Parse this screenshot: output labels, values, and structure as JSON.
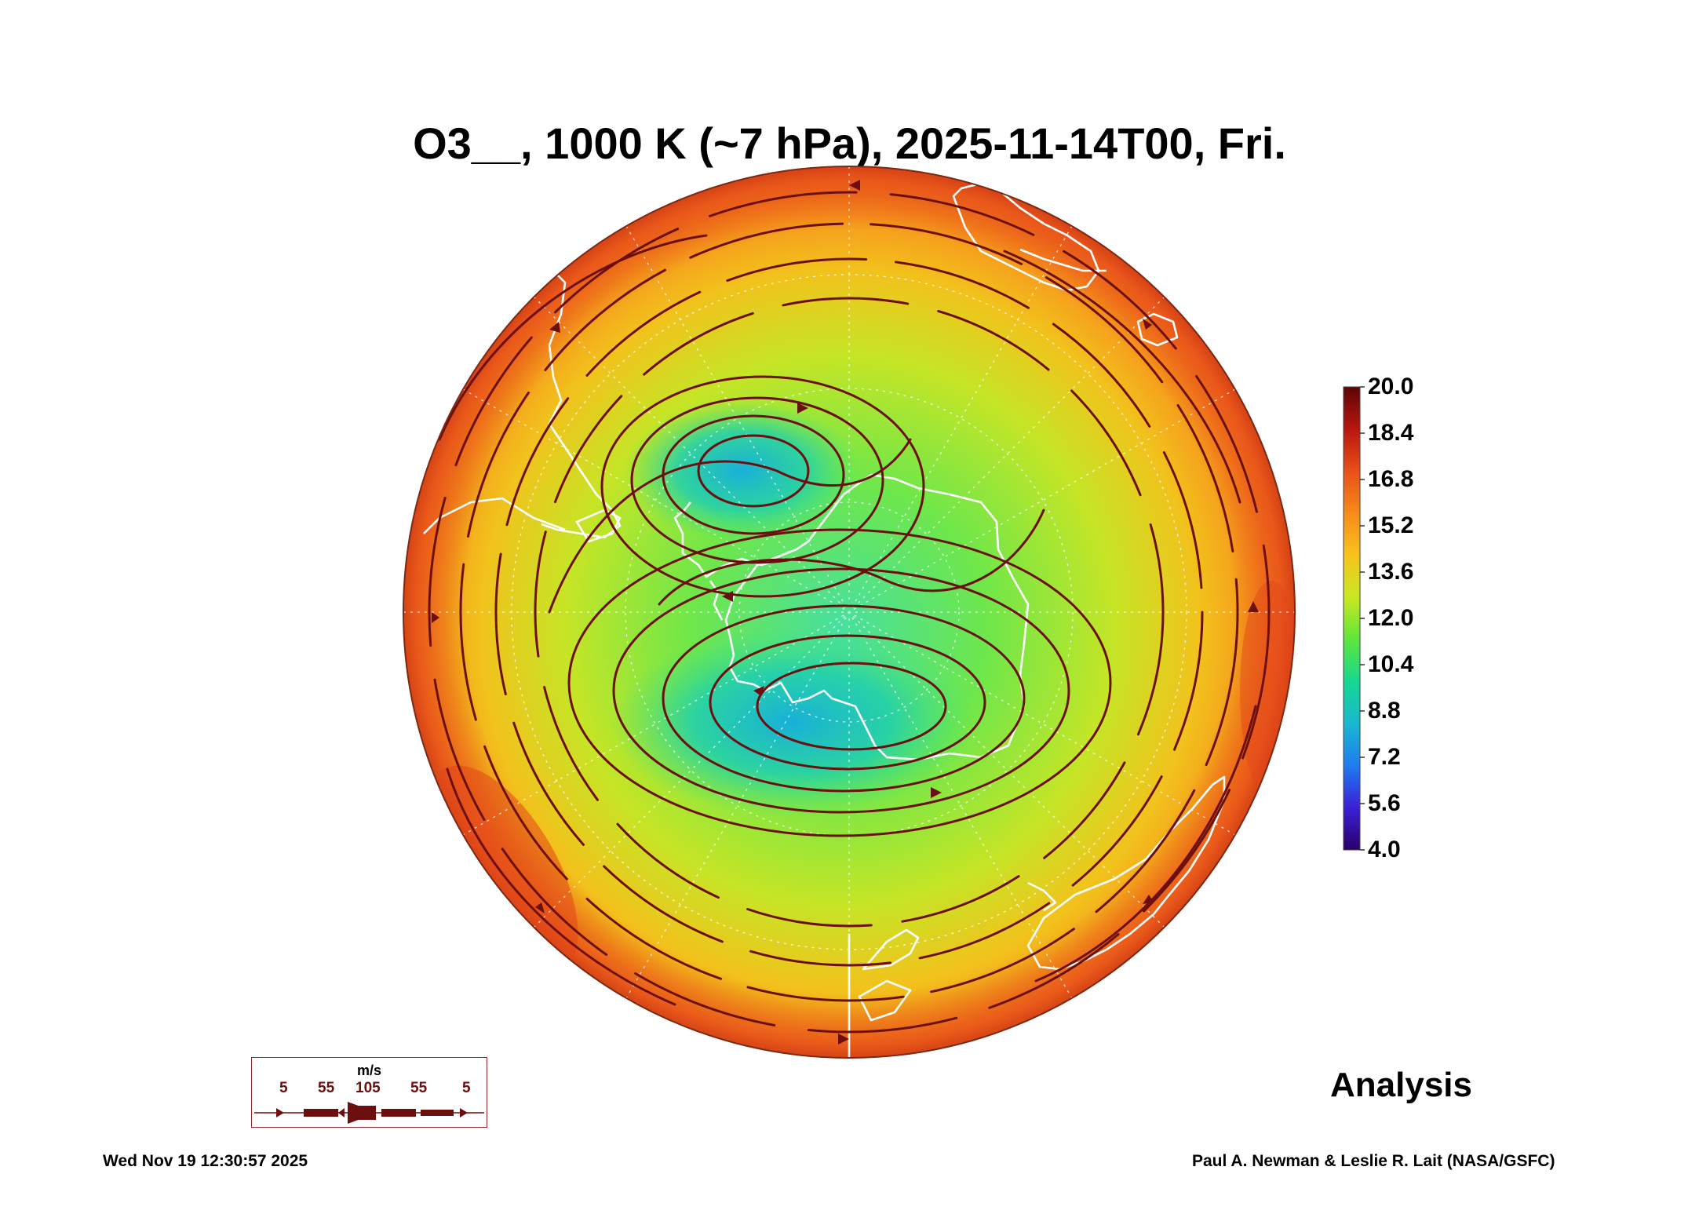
{
  "title": "O3__, 1000 K (~7 hPa), 2025-11-14T00, Fri.",
  "map": {
    "projection": "south-polar-stereographic",
    "field": "O3__",
    "level": "1000 K (~7 hPa)",
    "valid_time": "2025-11-14T00"
  },
  "colorbar": {
    "ticks": [
      "20.0",
      "18.4",
      "16.8",
      "15.2",
      "13.6",
      "12.0",
      "10.4",
      "8.8",
      "7.2",
      "5.6",
      "4.0"
    ],
    "min": 4.0,
    "max": 20.0,
    "colors": [
      "#2a006a",
      "#3b1fd6",
      "#1f7cf0",
      "#18b8d0",
      "#16d890",
      "#5ee63a",
      "#c8e822",
      "#f7c41c",
      "#f78a1a",
      "#e8501a",
      "#b8160f",
      "#5c0505"
    ]
  },
  "wind_legend": {
    "unit": "m/s",
    "speeds": [
      "5",
      "55",
      "105",
      "55",
      "5"
    ],
    "color": "#6b0f0f"
  },
  "label": "Analysis",
  "footer": {
    "timestamp": "Wed Nov 19 12:30:57 2025",
    "credit": "Paul A. Newman & Leslie R. Lait (NASA/GSFC)"
  }
}
